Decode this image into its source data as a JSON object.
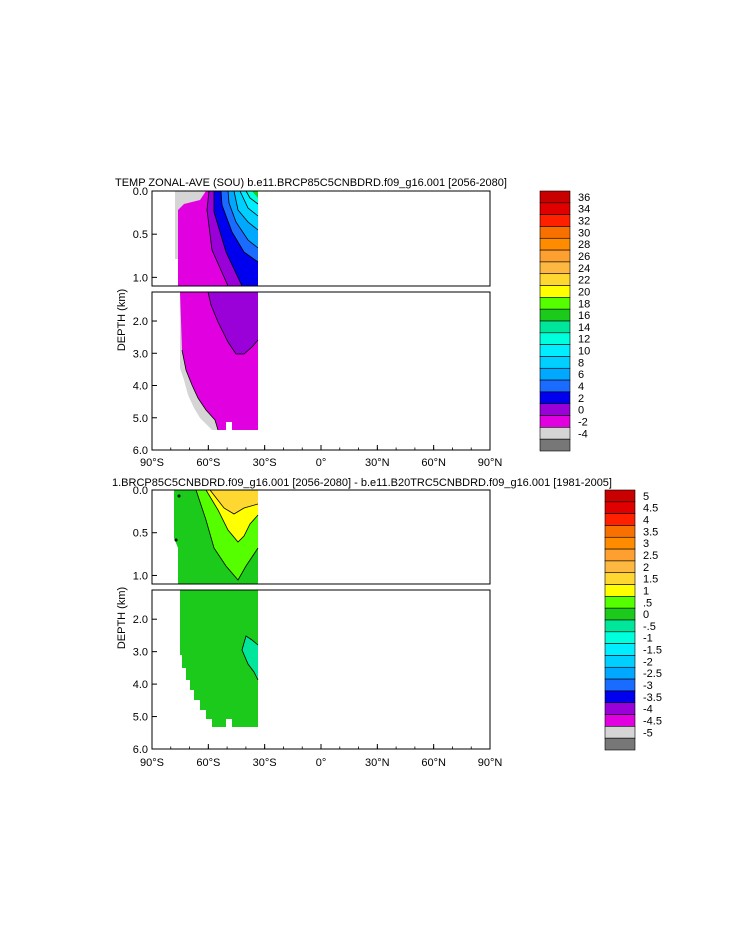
{
  "chart_data": [
    {
      "type": "contour",
      "title": "TEMP ZONAL-AVE (SOU) b.e11.BRCP85C5CNBDRD.f09_g16.001 [2056-2080]",
      "ylabel": "DEPTH (km)",
      "x_ticks": [
        {
          "v": -90,
          "label": "90°S"
        },
        {
          "v": -60,
          "label": "60°S"
        },
        {
          "v": -30,
          "label": "30°S"
        },
        {
          "v": 0,
          "label": "0°"
        },
        {
          "v": 30,
          "label": "30°N"
        },
        {
          "v": 60,
          "label": "60°N"
        },
        {
          "v": 90,
          "label": "90°N"
        }
      ],
      "y_ticks_upper": [
        {
          "v": 0.0,
          "label": "0.0"
        },
        {
          "v": 0.5,
          "label": "0.5"
        },
        {
          "v": 1.0,
          "label": "1.0"
        }
      ],
      "y_ticks_lower": [
        {
          "v": 2.0,
          "label": "2.0"
        },
        {
          "v": 3.0,
          "label": "3.0"
        },
        {
          "v": 4.0,
          "label": "4.0"
        },
        {
          "v": 5.0,
          "label": "5.0"
        },
        {
          "v": 6.0,
          "label": "6.0"
        }
      ],
      "xlim": [
        -90,
        90
      ],
      "ylim_upper": [
        0,
        1.1
      ],
      "ylim_lower": [
        1.1,
        6.0
      ],
      "colorbar": {
        "labels": [
          "36",
          "34",
          "32",
          "30",
          "28",
          "26",
          "24",
          "22",
          "20",
          "18",
          "16",
          "14",
          "12",
          "10",
          "8",
          "6",
          "4",
          "2",
          "0",
          "-2",
          "-4"
        ],
        "colors": [
          "#c80000",
          "#e10000",
          "#ff2000",
          "#f87000",
          "#ff8c00",
          "#fda030",
          "#fcb840",
          "#fed830",
          "#ffff00",
          "#55ff00",
          "#1bca1b",
          "#00e69a",
          "#00ffdd",
          "#00eeff",
          "#00d0ff",
          "#00a8ff",
          "#1a6bff",
          "#0000ee",
          "#9a00d8",
          "#e000e0",
          "#d5d5d5",
          "#777777"
        ]
      }
    },
    {
      "type": "contour",
      "title": "1.BRCP85C5CNBDRD.f09_g16.001 [2056-2080] - b.e11.B20TRC5CNBDRD.f09_g16.001 [1981-2005]",
      "ylabel": "DEPTH (km)",
      "x_ticks": [
        {
          "v": -90,
          "label": "90°S"
        },
        {
          "v": -60,
          "label": "60°S"
        },
        {
          "v": -30,
          "label": "30°S"
        },
        {
          "v": 0,
          "label": "0°"
        },
        {
          "v": 30,
          "label": "30°N"
        },
        {
          "v": 60,
          "label": "60°N"
        },
        {
          "v": 90,
          "label": "90°N"
        }
      ],
      "y_ticks_upper": [
        {
          "v": 0.0,
          "label": "0.0"
        },
        {
          "v": 0.5,
          "label": "0.5"
        },
        {
          "v": 1.0,
          "label": "1.0"
        }
      ],
      "y_ticks_lower": [
        {
          "v": 2.0,
          "label": "2.0"
        },
        {
          "v": 3.0,
          "label": "3.0"
        },
        {
          "v": 4.0,
          "label": "4.0"
        },
        {
          "v": 5.0,
          "label": "5.0"
        },
        {
          "v": 6.0,
          "label": "6.0"
        }
      ],
      "xlim": [
        -90,
        90
      ],
      "ylim_upper": [
        0,
        1.1
      ],
      "ylim_lower": [
        1.1,
        6.0
      ],
      "colorbar": {
        "labels": [
          "5",
          "4.5",
          "4",
          "3.5",
          "3",
          "2.5",
          "2",
          "1.5",
          "1",
          ".5",
          "0",
          "-.5",
          "-1",
          "-1.5",
          "-2",
          "-2.5",
          "-3",
          "-3.5",
          "-4",
          "-4.5",
          "-5"
        ],
        "colors": [
          "#c80000",
          "#e10000",
          "#ff2000",
          "#f87000",
          "#ff8c00",
          "#fda030",
          "#fcb840",
          "#fed830",
          "#ffff00",
          "#55ff00",
          "#1bca1b",
          "#00e69a",
          "#00ffdd",
          "#00eeff",
          "#00d0ff",
          "#00a8ff",
          "#1a6bff",
          "#0000ee",
          "#9a00d8",
          "#e000e0",
          "#d5d5d5",
          "#777777"
        ]
      }
    }
  ]
}
